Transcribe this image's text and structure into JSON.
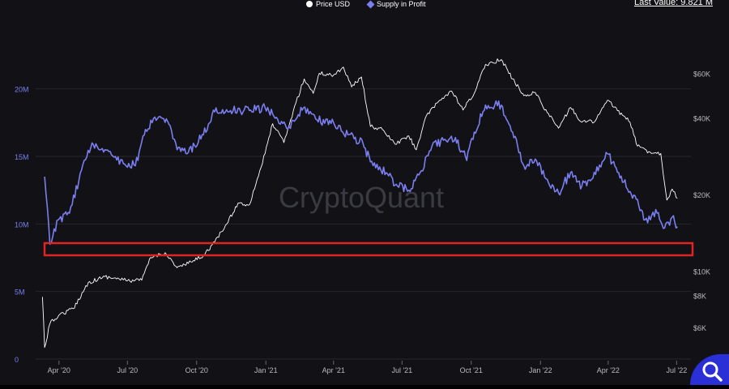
{
  "header": {
    "legend_price": "Price USD",
    "legend_supply": "Supply in Profit",
    "last_value": "Last Value: 9.821 M"
  },
  "watermark": "CryptoQuant",
  "colors": {
    "background": "#121216",
    "supply": "#7b7ef0",
    "price": "#ffffff",
    "highlight": "#e02424",
    "fab": "#2b2fd6"
  },
  "chart_data": {
    "type": "line",
    "x_ticks": [
      "Apr '20",
      "Jul '20",
      "Oct '20",
      "Jan '21",
      "Apr '21",
      "Jul '21",
      "Oct '21",
      "Jan '22",
      "Apr '22",
      "Jul '22"
    ],
    "y_left_ticks": [
      "0",
      "5M",
      "10M",
      "15M",
      "20M"
    ],
    "y_left_range": [
      0,
      24000000
    ],
    "y_right_ticks": [
      "$6K",
      "$8K",
      "$10K",
      "$20K",
      "$40K",
      "$60K"
    ],
    "y_right_scale": "log",
    "y_right_range": [
      4500,
      85000
    ],
    "legend_placement": "top-center",
    "grid": "horizontal",
    "series": [
      {
        "name": "Supply in Profit",
        "axis": "left",
        "values": [
          [
            "2020-03-13",
            13500000
          ],
          [
            "2020-03-20",
            8500000
          ],
          [
            "2020-03-31",
            10300000
          ],
          [
            "2020-04-15",
            10800000
          ],
          [
            "2020-05-01",
            14000000
          ],
          [
            "2020-05-15",
            16000000
          ],
          [
            "2020-06-01",
            15500000
          ],
          [
            "2020-06-15",
            15000000
          ],
          [
            "2020-07-01",
            14200000
          ],
          [
            "2020-07-15",
            14700000
          ],
          [
            "2020-07-25",
            17000000
          ],
          [
            "2020-08-10",
            17800000
          ],
          [
            "2020-08-25",
            17400000
          ],
          [
            "2020-09-05",
            15500000
          ],
          [
            "2020-09-20",
            15300000
          ],
          [
            "2020-10-10",
            16600000
          ],
          [
            "2020-10-25",
            18300000
          ],
          [
            "2020-11-15",
            18400000
          ],
          [
            "2020-12-10",
            18400000
          ],
          [
            "2020-12-31",
            18600000
          ],
          [
            "2021-01-15",
            17900000
          ],
          [
            "2021-02-01",
            17200000
          ],
          [
            "2021-02-20",
            18600000
          ],
          [
            "2021-03-10",
            17700000
          ],
          [
            "2021-04-01",
            17500000
          ],
          [
            "2021-04-20",
            16600000
          ],
          [
            "2021-05-10",
            16000000
          ],
          [
            "2021-05-20",
            14600000
          ],
          [
            "2021-06-10",
            13800000
          ],
          [
            "2021-06-25",
            12800000
          ],
          [
            "2021-07-10",
            12500000
          ],
          [
            "2021-07-25",
            13800000
          ],
          [
            "2021-08-10",
            15800000
          ],
          [
            "2021-08-25",
            16200000
          ],
          [
            "2021-09-10",
            16400000
          ],
          [
            "2021-09-25",
            14700000
          ],
          [
            "2021-10-05",
            16800000
          ],
          [
            "2021-10-20",
            18800000
          ],
          [
            "2021-11-10",
            18800000
          ],
          [
            "2021-11-25",
            16800000
          ],
          [
            "2021-12-10",
            14300000
          ],
          [
            "2021-12-25",
            14800000
          ],
          [
            "2022-01-10",
            13300000
          ],
          [
            "2022-01-25",
            12300000
          ],
          [
            "2022-02-10",
            13800000
          ],
          [
            "2022-02-25",
            12800000
          ],
          [
            "2022-03-10",
            13300000
          ],
          [
            "2022-03-31",
            15200000
          ],
          [
            "2022-04-15",
            13800000
          ],
          [
            "2022-04-30",
            12400000
          ],
          [
            "2022-05-10",
            11800000
          ],
          [
            "2022-05-20",
            10300000
          ],
          [
            "2022-06-05",
            10800000
          ],
          [
            "2022-06-15",
            9700000
          ],
          [
            "2022-06-25",
            10500000
          ],
          [
            "2022-07-02",
            9800000
          ]
        ]
      },
      {
        "name": "Price USD",
        "axis": "right",
        "values": [
          [
            "2020-03-10",
            7900
          ],
          [
            "2020-03-13",
            5000
          ],
          [
            "2020-03-20",
            6200
          ],
          [
            "2020-04-01",
            6700
          ],
          [
            "2020-04-20",
            7100
          ],
          [
            "2020-05-10",
            9000
          ],
          [
            "2020-06-01",
            9500
          ],
          [
            "2020-06-20",
            9300
          ],
          [
            "2020-07-01",
            9150
          ],
          [
            "2020-07-20",
            9200
          ],
          [
            "2020-08-01",
            11300
          ],
          [
            "2020-08-20",
            11800
          ],
          [
            "2020-09-05",
            10300
          ],
          [
            "2020-09-20",
            10700
          ],
          [
            "2020-10-10",
            11500
          ],
          [
            "2020-10-25",
            13000
          ],
          [
            "2020-11-10",
            15300
          ],
          [
            "2020-11-25",
            18500
          ],
          [
            "2020-12-10",
            18200
          ],
          [
            "2020-12-31",
            29000
          ],
          [
            "2021-01-10",
            38000
          ],
          [
            "2021-01-25",
            32000
          ],
          [
            "2021-02-10",
            46000
          ],
          [
            "2021-02-21",
            57000
          ],
          [
            "2021-03-05",
            50000
          ],
          [
            "2021-03-13",
            60000
          ],
          [
            "2021-04-01",
            59000
          ],
          [
            "2021-04-14",
            63500
          ],
          [
            "2021-04-25",
            53000
          ],
          [
            "2021-05-08",
            58000
          ],
          [
            "2021-05-20",
            37000
          ],
          [
            "2021-06-05",
            36000
          ],
          [
            "2021-06-22",
            31500
          ],
          [
            "2021-07-10",
            34000
          ],
          [
            "2021-07-20",
            30000
          ],
          [
            "2021-08-01",
            40000
          ],
          [
            "2021-08-20",
            47000
          ],
          [
            "2021-09-05",
            51000
          ],
          [
            "2021-09-20",
            43000
          ],
          [
            "2021-10-05",
            50000
          ],
          [
            "2021-10-20",
            65000
          ],
          [
            "2021-11-10",
            68000
          ],
          [
            "2021-11-25",
            57000
          ],
          [
            "2021-12-10",
            49000
          ],
          [
            "2021-12-25",
            50500
          ],
          [
            "2022-01-10",
            42000
          ],
          [
            "2022-01-25",
            36500
          ],
          [
            "2022-02-10",
            44000
          ],
          [
            "2022-02-25",
            38500
          ],
          [
            "2022-03-15",
            39000
          ],
          [
            "2022-03-31",
            47000
          ],
          [
            "2022-04-20",
            41000
          ],
          [
            "2022-04-30",
            38500
          ],
          [
            "2022-05-10",
            31000
          ],
          [
            "2022-05-25",
            29500
          ],
          [
            "2022-06-10",
            29000
          ],
          [
            "2022-06-18",
            19000
          ],
          [
            "2022-06-25",
            21000
          ],
          [
            "2022-07-02",
            19300
          ]
        ]
      }
    ]
  }
}
